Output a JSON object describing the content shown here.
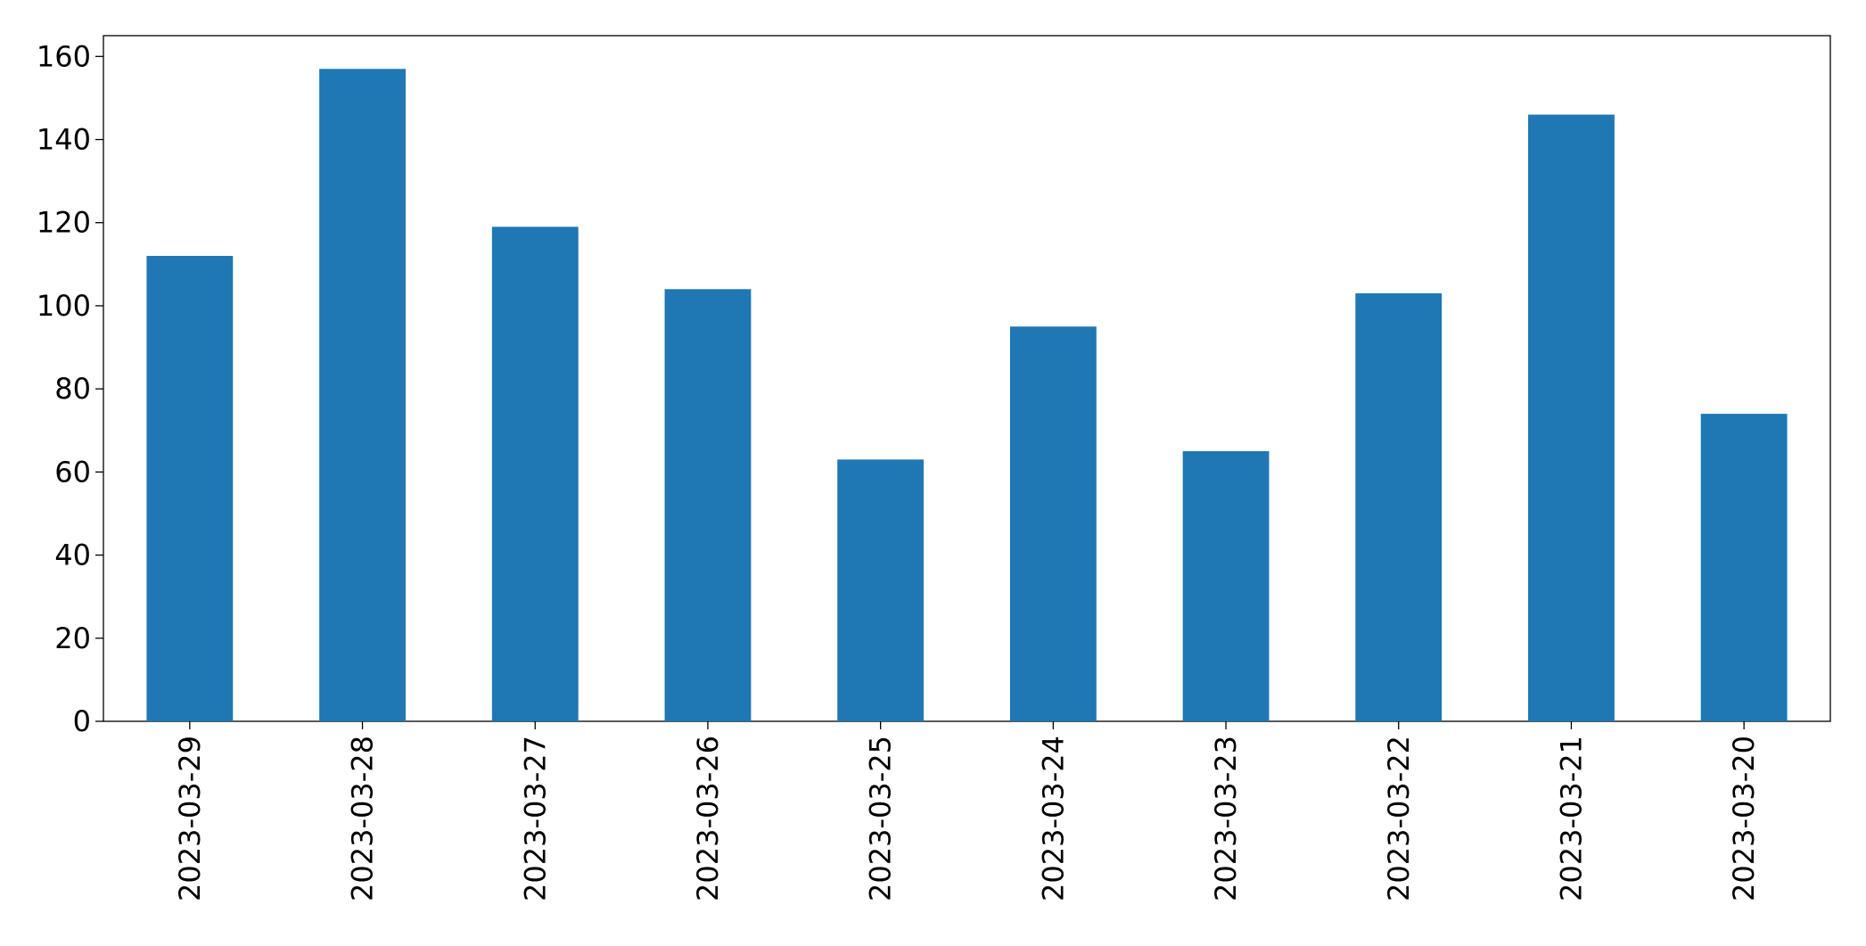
{
  "chart_data": {
    "type": "bar",
    "categories": [
      "2023-03-29",
      "2023-03-28",
      "2023-03-27",
      "2023-03-26",
      "2023-03-25",
      "2023-03-24",
      "2023-03-23",
      "2023-03-22",
      "2023-03-21",
      "2023-03-20"
    ],
    "values": [
      112,
      157,
      119,
      104,
      63,
      95,
      65,
      103,
      146,
      74
    ],
    "color": "#1f77b4",
    "ylim": [
      0,
      165
    ],
    "yticks": [
      0,
      20,
      40,
      60,
      80,
      100,
      120,
      140,
      160
    ],
    "grid": false
  }
}
